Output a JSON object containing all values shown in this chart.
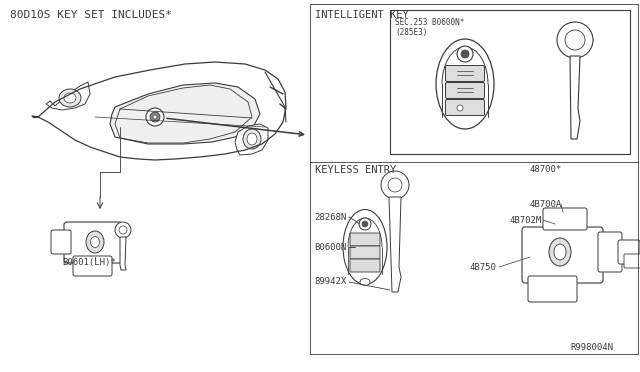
{
  "bg_color": "#ffffff",
  "line_color": "#3a3a3a",
  "title_top_left": "80D10S KEY SET INCLUDES*",
  "label_intelligent_key": "INTELLIGENT KEY",
  "label_keyless_entry": "KEYLESS ENTRY",
  "label_car_part": "B0601(LH)*",
  "label_b0600n": "B0600N",
  "label_28268n": "28268N",
  "label_89942x": "89942X",
  "label_48700star": "48700*",
  "label_48700a": "4B700A",
  "label_48702m": "4B702M",
  "label_48750": "4B750",
  "label_r998004n": "R998004N",
  "label_sec": "SEC.253 B0600N*",
  "label_285e3": "(285E3)",
  "font_size_tiny": 5.5,
  "font_size_small": 6.5,
  "font_size_label": 7.5,
  "font_size_section": 8.0
}
